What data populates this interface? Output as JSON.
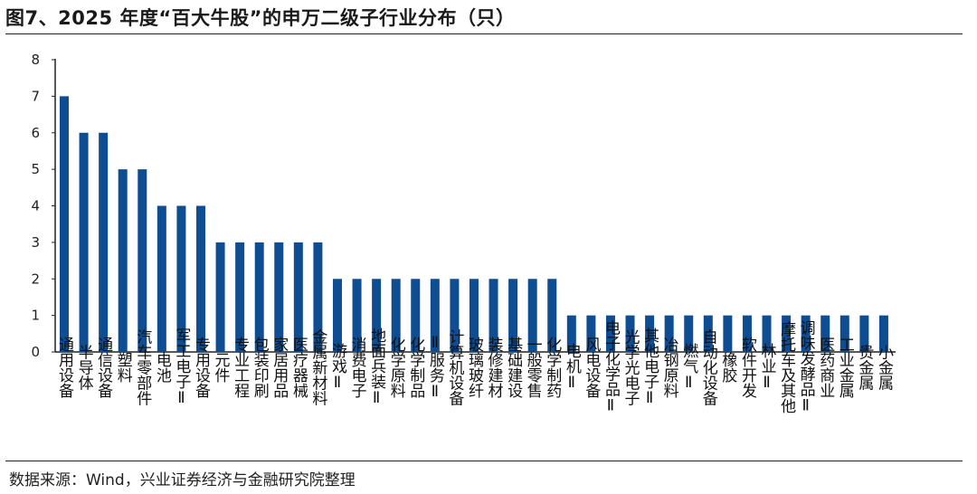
{
  "title": "图7、2025 年度“百大牛股”的申万二级子行业分布（只）",
  "source": "数据来源：Wind，兴业证券经济与金融研究院整理",
  "colors": {
    "bar": "#0e4d92",
    "axis": "#222222"
  },
  "chart_data": {
    "type": "bar",
    "ylim": [
      0,
      8
    ],
    "yticks": [
      0,
      1,
      2,
      3,
      4,
      5,
      6,
      7,
      8
    ],
    "grid": false,
    "categories": [
      "通用设备",
      "半导体",
      "通信设备",
      "塑料",
      "汽车零部件",
      "电池",
      "军工电子Ⅱ",
      "专用设备",
      "元件",
      "专业工程",
      "包装印刷",
      "家居用品",
      "医疗器械",
      "金属新材料",
      "游戏Ⅱ",
      "消费电子",
      "地面兵装Ⅱ",
      "化学原料",
      "化学制品",
      "Ⅱ服务Ⅱ",
      "计算机设备",
      "玻璃玻纤",
      "装修建材",
      "基础建设",
      "一般零售",
      "化学制药",
      "电机Ⅱ",
      "风电设备",
      "电子化学品Ⅱ",
      "光学光电子",
      "其他电子Ⅱ",
      "冶钢原料",
      "燃气Ⅱ",
      "自动化设备",
      "橡胶",
      "软件开发",
      "林业Ⅱ",
      "摩托车及其他",
      "调味发酵品Ⅱ",
      "医药商业",
      "工业金属",
      "贵金属",
      "小金属"
    ],
    "values": [
      7,
      6,
      6,
      5,
      5,
      4,
      4,
      4,
      3,
      3,
      3,
      3,
      3,
      3,
      2,
      2,
      2,
      2,
      2,
      2,
      2,
      2,
      2,
      2,
      2,
      2,
      1,
      1,
      1,
      1,
      1,
      1,
      1,
      1,
      1,
      1,
      1,
      1,
      1,
      1,
      1,
      1,
      1
    ]
  }
}
